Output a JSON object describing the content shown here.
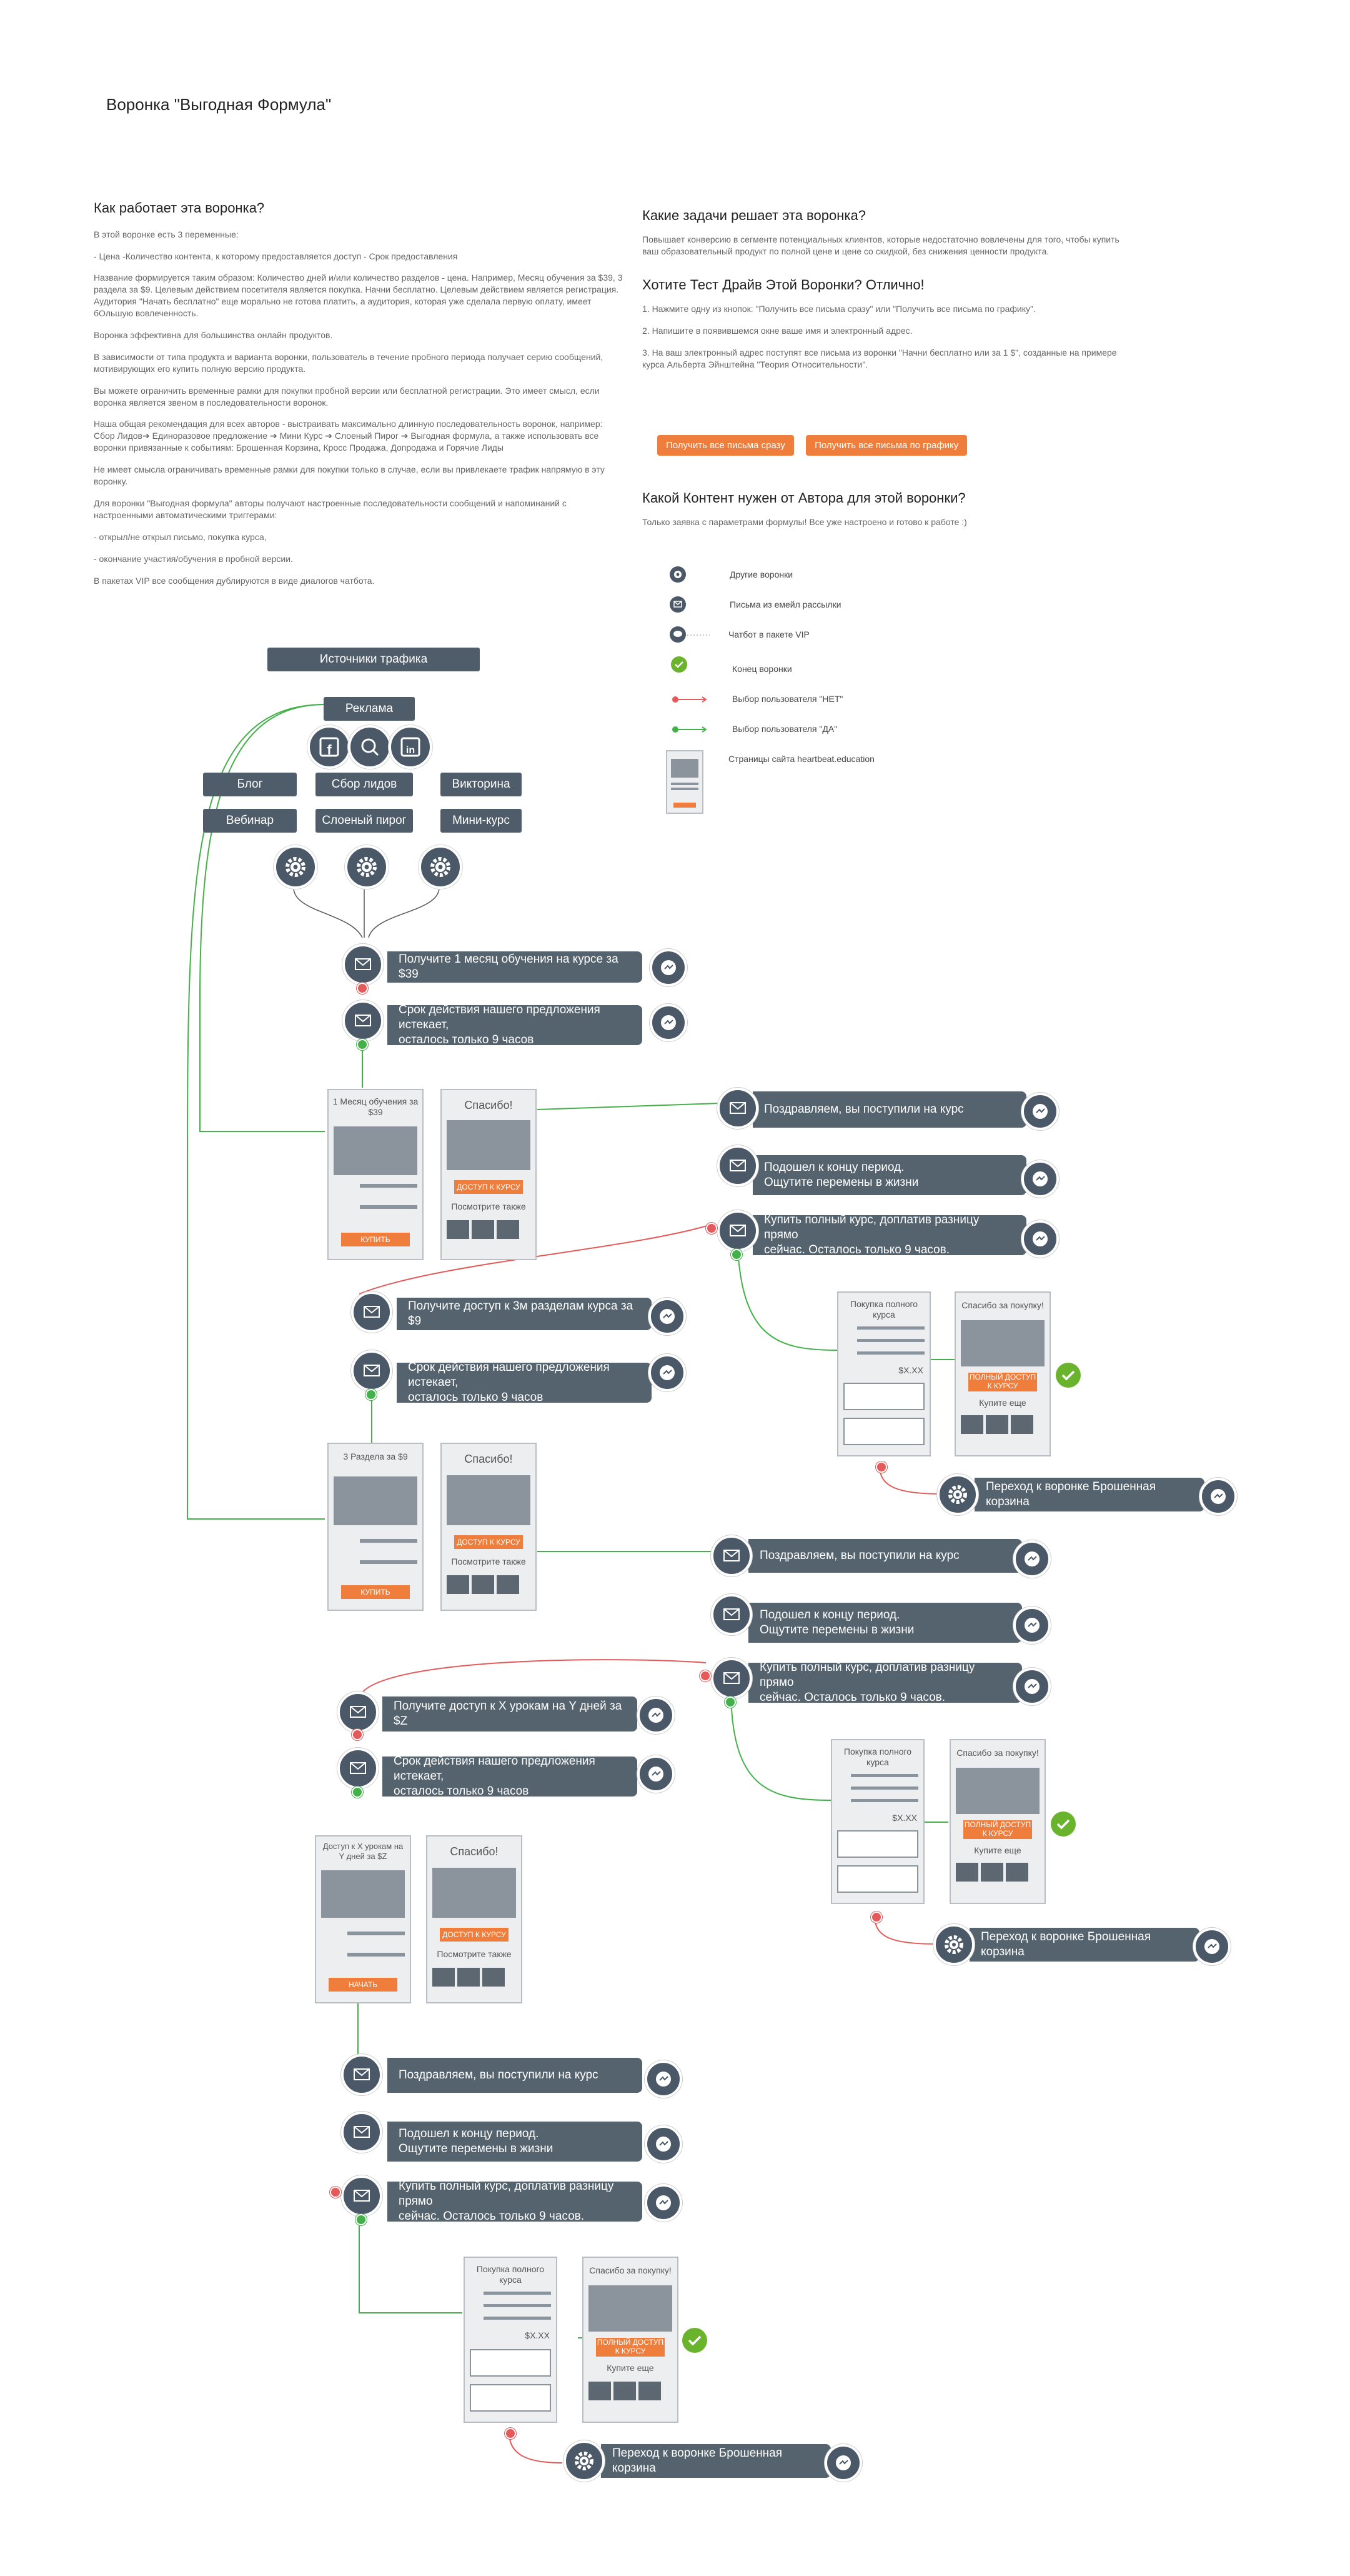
{
  "title": "Воронка \"Выгодная Формула\"",
  "left": {
    "heading": "Как работает эта воронка?",
    "paragraphs": [
      "В этой воронке есть 3 переменные:",
      "- Цена -Количество контента, к которому предоставляется доступ - Срок предоставления",
      "Название формируется таким образом: Количество дней и/или количество разделов - цена. Например, Месяц обучения за $39, 3 раздела за $9. Целевым действием посетителя является покупка. Начни бесплатно. Целевым действием является регистрация. Аудитория \"Начать бесплатно\" еще морально не готова платить, а аудитория, которая уже сделала первую оплату, имеет бОльшую вовлеченность.",
      "Воронка эффективна для большинства онлайн продуктов.",
      "В зависимости от типа продукта и варианта воронки, пользователь в течение пробного периода получает серию сообщений, мотивирующих его купить полную версию продукта.",
      "Вы можете ограничить временные рамки для покупки пробной версии или бесплатной регистрации. Это имеет смысл, если воронка является звеном в последовательности воронок.",
      "Наша общая рекомендация для всех авторов - выстраивать максимально длинную последовательность воронок, например: Сбор Лидов➔ Единоразовое предложение ➔ Мини Курс ➔ Слоеный Пирог ➔ Выгодная формула, а также использовать все воронки привязанные к событиям: Брошенная Корзина, Кросс Продажа, Допродажа и Горячие Лиды",
      "Не имеет смысла ограничивать временные рамки для покупки только в случае, если вы привлекаете трафик напрямую в эту воронку.",
      "Для воронки \"Выгодная формула\" авторы получают настроенные последовательности сообщений и напоминаний с настроенными автоматическими триггерами:",
      "- открыл/не открыл письмо, покупка курса,",
      "- окончание участия/обучения в пробной версии.",
      "В пакетах VIP все сообщения дублируются в виде диалогов чатбота."
    ]
  },
  "right": {
    "h1": "Какие задачи решает эта воронка?",
    "p1": "Повышает конверсию в сегменте потенциальных клиентов, которые недостаточно вовлечены для того, чтобы купить ваш образовательный продукт по полной цене и цене со скидкой, без снижения ценности продукта.",
    "h2": "Хотите Тест Драйв Этой Воронки? Отлично!",
    "steps": [
      "1. Нажмите одну из кнопок: \"Получить все письма сразу\" или \"Получить все письма по графику\".",
      "2. Напишите в появившемся окне ваше имя и электронный адрес.",
      "3. На ваш электронный адрес поступят все письма из воронки \"Начни бесплатно или за 1 $\", созданные на примере курса Альберта Эйнштейна \"Теория Относительности\"."
    ],
    "btn1": "Получить все письма сразу",
    "btn2": "Получить все письма по графику",
    "h3": "Какой Контент нужен от Автора для этой воронки?",
    "p3": "Только заявка с параметрами формулы! Все уже настроено и готово к работе :)"
  },
  "legend": [
    {
      "icon": "gear-icon",
      "label": "Другие воронки"
    },
    {
      "icon": "mail-icon",
      "label": "Письма из емейл рассылки"
    },
    {
      "icon": "chatbot-icon",
      "label": "Чатбот в пакете VIP"
    },
    {
      "icon": "check-icon",
      "label": "Конец воронки"
    },
    {
      "icon": "red-arrow",
      "label": "Выбор пользователя \"НЕТ\""
    },
    {
      "icon": "green-arrow",
      "label": "Выбор пользователя \"ДА\""
    },
    {
      "icon": "page-icon",
      "label": "Страницы сайта heartbeat.education"
    }
  ],
  "sources": {
    "header": "Источники трафика",
    "ads": "Реклама",
    "row1": [
      "Блог",
      "Сбор лидов",
      "Викторина"
    ],
    "row2": [
      "Вебинар",
      "Слоеный пирог",
      "Мини-курс"
    ]
  },
  "msgs": {
    "m1": "Получите 1 месяц обучения на курсе за $39",
    "m2a": "Срок действия нашего предложения истекает,",
    "m2b": "осталось только 9 часов",
    "congrats": "Поздравляем, вы поступили на курс",
    "end1": "Подошел к концу период.",
    "end2": "Ощутите перемены в жизни",
    "buy1": "Купить полный курс, доплатив разницу прямо",
    "buy2": "сейчас. Осталось только 9 часов.",
    "m3": "Получите доступ к 3м разделам курса за $9",
    "m4": "Получите  доступ к X урокам на Y дней за $Z",
    "abandon": "Переход к воронке Брошенная корзина"
  },
  "pages": {
    "month": "1 Месяц обучения за $39",
    "three": "3 Раздела за $9",
    "xyz": "Доступ к X урокам на Y дней за $Z",
    "buy": "КУПИТЬ",
    "start": "НАЧАТЬ",
    "thanks": "Спасибо!",
    "access": "ДОСТУП К КУРСУ",
    "seealso": "Посмотрите также",
    "full": "Покупка полного курса",
    "price": "$X.XX",
    "thanksBuy": "Спасибо за покупку!",
    "fullBtn": "ПОЛНЫЙ ДОСТУП К КУРСУ",
    "more": "Купите еще"
  }
}
